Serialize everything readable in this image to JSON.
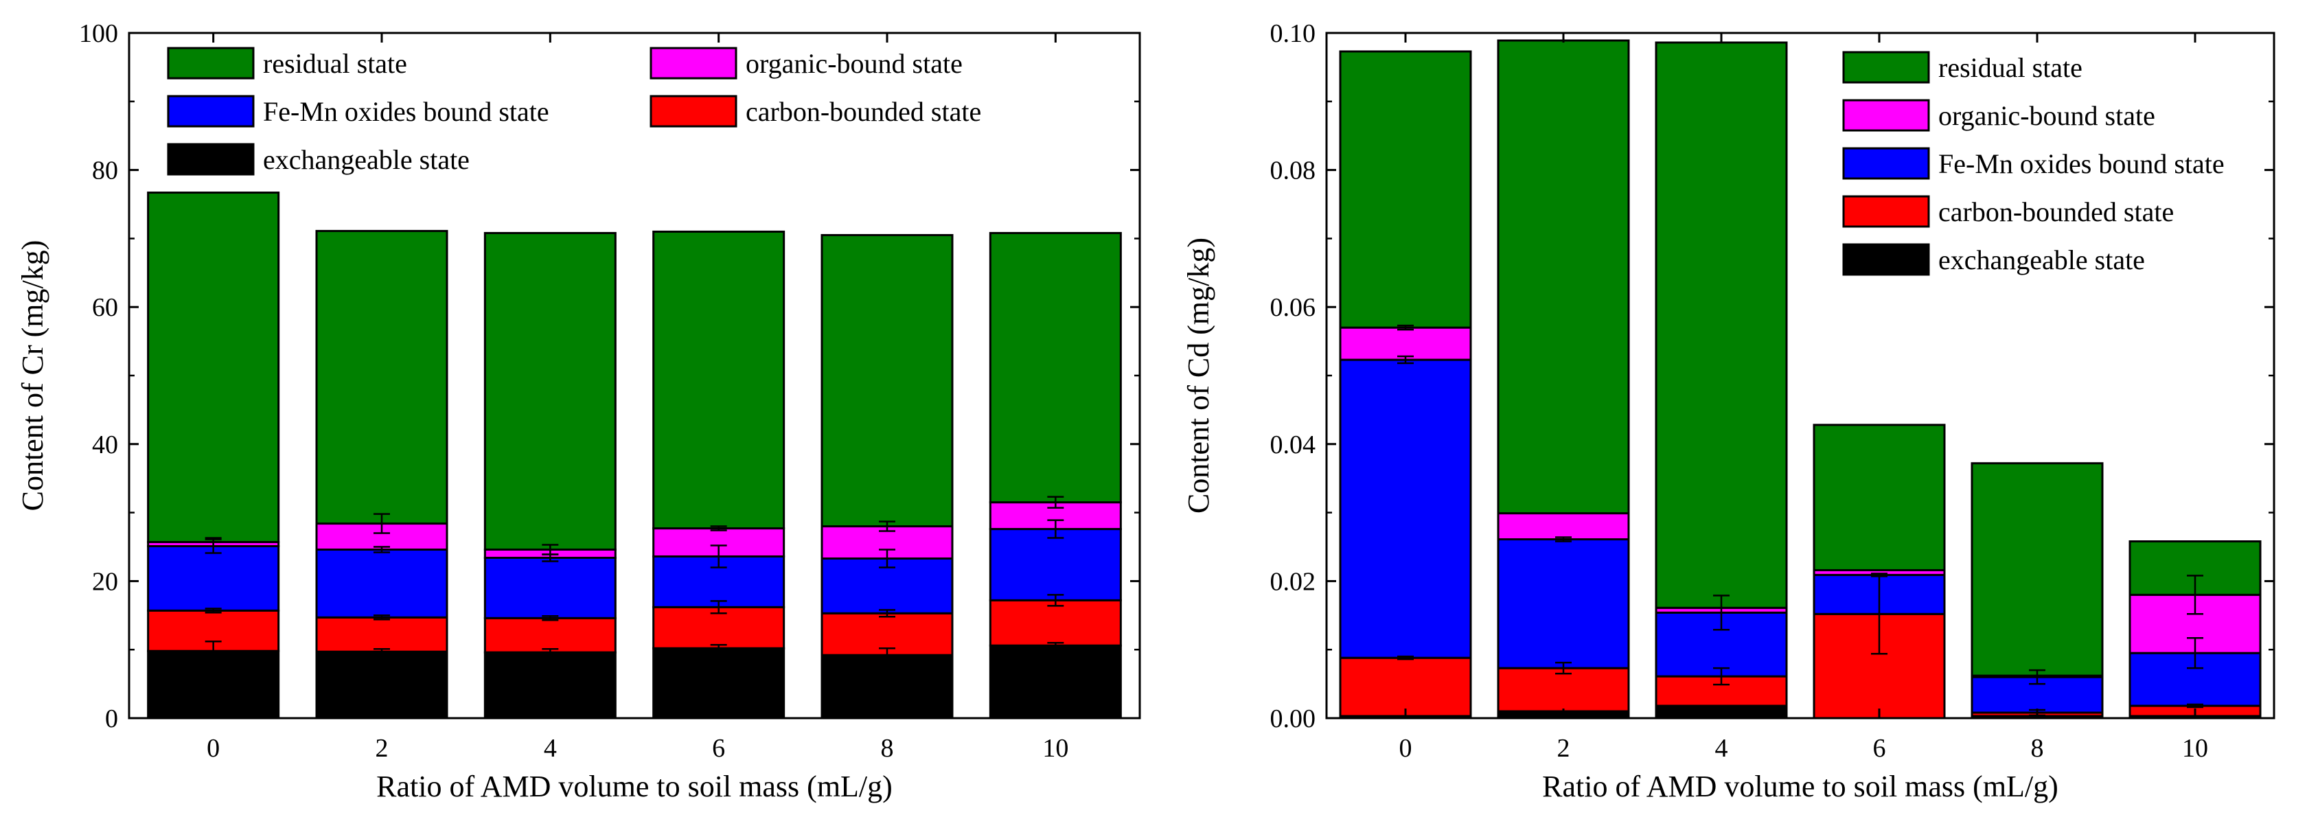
{
  "colors": {
    "residual state": "#008000",
    "organic-bound state": "#ff00ff",
    "Fe-Mn oxides bound state": "#0000ff",
    "carbon-bounded state": "#ff0000",
    "exchangeable state": "#000000"
  },
  "chart_data": [
    {
      "type": "bar",
      "stacked": true,
      "title": "",
      "xlabel": "Ratio of AMD volume to soil mass (mL/g)",
      "ylabel": "Content of Cr (mg/kg)",
      "categories": [
        "0",
        "2",
        "4",
        "6",
        "8",
        "10"
      ],
      "ylim": [
        0,
        100
      ],
      "yticks": [
        "0",
        "20",
        "40",
        "60",
        "80",
        "100"
      ],
      "legend_position": "top, two columns",
      "legend_order": [
        "residual state",
        "organic-bound state",
        "Fe-Mn oxides bound state",
        "carbon-bounded state",
        "exchangeable state"
      ],
      "series": [
        {
          "name": "exchangeable state",
          "values": [
            9.8,
            9.7,
            9.6,
            10.2,
            9.2,
            10.6
          ],
          "errors": [
            1.4,
            0.4,
            0.5,
            0.5,
            1.0,
            0.4
          ]
        },
        {
          "name": "carbon-bounded state",
          "values": [
            5.9,
            5.0,
            5.0,
            6.0,
            6.1,
            6.6
          ],
          "errors": [
            0.3,
            0.3,
            0.3,
            0.9,
            0.5,
            0.8
          ]
        },
        {
          "name": "Fe-Mn oxides bound state",
          "values": [
            9.4,
            9.9,
            8.8,
            7.4,
            8.0,
            10.4
          ],
          "errors": [
            1.0,
            0.4,
            0.5,
            1.6,
            1.3,
            1.3
          ]
        },
        {
          "name": "organic-bound state",
          "values": [
            0.6,
            3.8,
            1.2,
            4.1,
            4.7,
            3.9
          ],
          "errors": [
            0.6,
            1.4,
            0.7,
            0.3,
            0.7,
            0.8
          ]
        },
        {
          "name": "residual state",
          "values": [
            51.0,
            42.7,
            46.2,
            43.3,
            42.5,
            39.3
          ],
          "errors": [
            0,
            0,
            0,
            0,
            0,
            0
          ]
        }
      ]
    },
    {
      "type": "bar",
      "stacked": true,
      "title": "",
      "xlabel": "Ratio of AMD volume to soil mass (mL/g)",
      "ylabel": "Content of Cd (mg/kg)",
      "categories": [
        "0",
        "2",
        "4",
        "6",
        "8",
        "10"
      ],
      "ylim": [
        0,
        0.1
      ],
      "yticks": [
        "0.00",
        "0.02",
        "0.04",
        "0.06",
        "0.08",
        "0.10"
      ],
      "legend_position": "top-right, one column",
      "legend_order": [
        "residual state",
        "organic-bound state",
        "Fe-Mn oxides bound state",
        "carbon-bounded state",
        "exchangeable state"
      ],
      "series": [
        {
          "name": "exchangeable state",
          "values": [
            0.0003,
            0.001,
            0.0018,
            0.0,
            0.0003,
            0.0003
          ],
          "errors": [
            0,
            0,
            0,
            0,
            0,
            0
          ]
        },
        {
          "name": "carbon-bounded state",
          "values": [
            0.0085,
            0.0063,
            0.0043,
            0.0152,
            0.0005,
            0.0015
          ],
          "errors": [
            0.0002,
            0.0008,
            0.0012,
            0.0058,
            0.0004,
            0.0002
          ]
        },
        {
          "name": "Fe-Mn oxides bound state",
          "values": [
            0.0435,
            0.0188,
            0.0093,
            0.0057,
            0.0052,
            0.0077
          ],
          "errors": [
            0.0005,
            0.0003,
            0.0025,
            0.0002,
            0.001,
            0.0022
          ]
        },
        {
          "name": "organic-bound state",
          "values": [
            0.0047,
            0.0038,
            0.0007,
            0.0007,
            0.0002,
            0.0085
          ],
          "errors": [
            0.0003,
            0.0,
            0.0,
            0.0,
            0.0,
            0.0028
          ]
        },
        {
          "name": "residual state",
          "values": [
            0.0403,
            0.069,
            0.0825,
            0.0212,
            0.031,
            0.0078
          ],
          "errors": [
            0,
            0,
            0,
            0,
            0,
            0
          ]
        }
      ]
    }
  ]
}
